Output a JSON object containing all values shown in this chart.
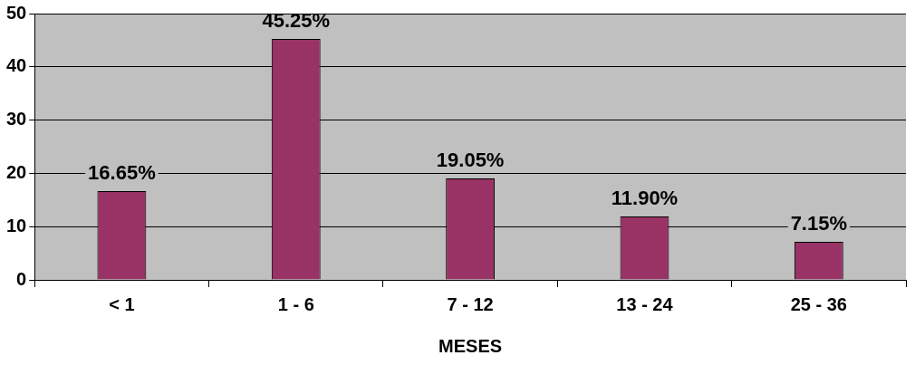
{
  "chart_data": {
    "type": "bar",
    "xlabel": "MESES",
    "categories": [
      "< 1",
      "1 - 6",
      "7 - 12",
      "13 - 24",
      "25 - 36"
    ],
    "values": [
      16.65,
      45.25,
      19.05,
      11.9,
      7.15
    ],
    "value_labels": [
      "16.65%",
      "45.25%",
      "19.05%",
      "11.90%",
      "7.15%"
    ],
    "color": "#993366",
    "ylim": [
      0,
      50
    ],
    "yticks": [
      0,
      10,
      20,
      30,
      40,
      50
    ],
    "grid": "y"
  }
}
